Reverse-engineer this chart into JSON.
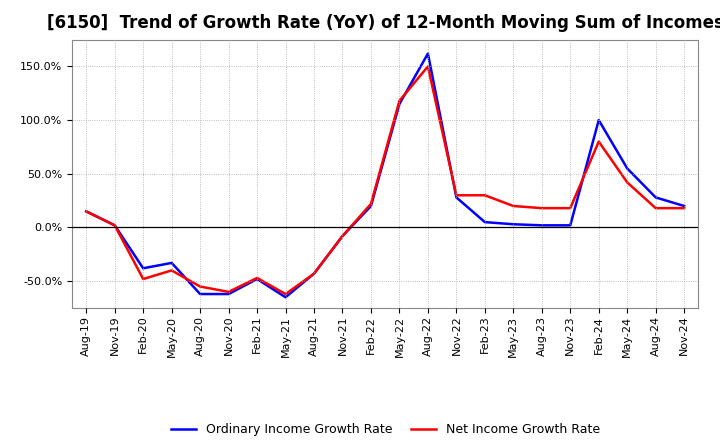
{
  "title": "[6150]  Trend of Growth Rate (YoY) of 12-Month Moving Sum of Incomes",
  "x_labels": [
    "Aug-19",
    "Nov-19",
    "Feb-20",
    "May-20",
    "Aug-20",
    "Nov-20",
    "Feb-21",
    "May-21",
    "Aug-21",
    "Nov-21",
    "Feb-22",
    "May-22",
    "Aug-22",
    "Nov-22",
    "Feb-23",
    "May-23",
    "Aug-23",
    "Nov-23",
    "Feb-24",
    "May-24",
    "Aug-24",
    "Nov-24"
  ],
  "ordinary_income": [
    15,
    2,
    -38,
    -33,
    -62,
    -62,
    -48,
    -65,
    -43,
    -8,
    20,
    115,
    162,
    28,
    5,
    3,
    2,
    2,
    100,
    55,
    28,
    20
  ],
  "net_income": [
    15,
    2,
    -48,
    -40,
    -55,
    -60,
    -47,
    -62,
    -43,
    -8,
    22,
    118,
    150,
    30,
    30,
    20,
    18,
    18,
    80,
    42,
    18,
    18
  ],
  "ordinary_color": "#0000FF",
  "net_color": "#FF0000",
  "background_color": "#FFFFFF",
  "plot_bg_color": "#FFFFFF",
  "grid_color": "#AAAAAA",
  "ylim": [
    -75,
    175
  ],
  "yticks": [
    -50,
    0,
    50,
    100,
    150
  ],
  "legend_ordinary": "Ordinary Income Growth Rate",
  "legend_net": "Net Income Growth Rate",
  "title_fontsize": 12,
  "axis_fontsize": 8,
  "legend_fontsize": 9
}
